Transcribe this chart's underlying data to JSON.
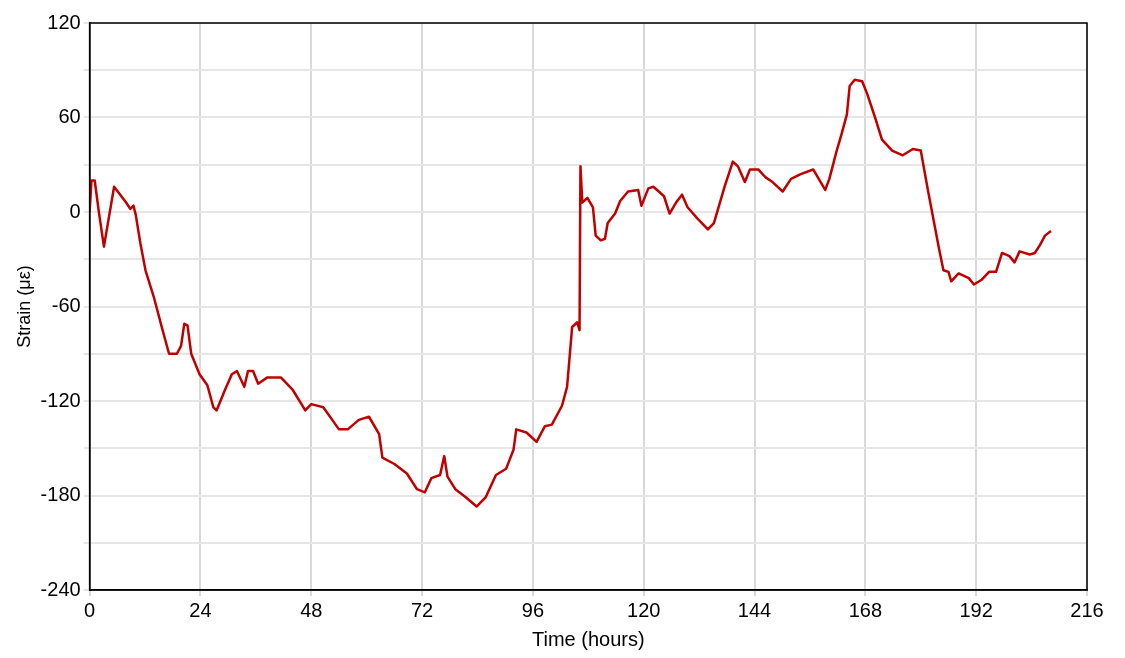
{
  "chart_data": {
    "type": "line",
    "xlabel": "Time (hours)",
    "ylabel": "Strain (με)",
    "xlim": [
      0,
      216
    ],
    "xticks": [
      0,
      24,
      48,
      72,
      96,
      120,
      144,
      168,
      192,
      216
    ],
    "ylim": [
      -240,
      120
    ],
    "yticks": [
      120,
      {
        "value": 90,
        "label": null
      },
      60,
      {
        "value": 30,
        "label": null
      },
      0,
      {
        "value": -30,
        "label": null
      },
      -60,
      {
        "value": -90,
        "label": null
      },
      -120,
      {
        "value": -150,
        "label": null
      },
      -180,
      {
        "value": -210,
        "label": null
      },
      -240
    ],
    "grid": true,
    "legend": false,
    "marker": "none",
    "line_style": "solid",
    "series": [
      {
        "color": "#c00000",
        "x": [
          0,
          0.4,
          1.1,
          2,
          3.1,
          5.3,
          7.9,
          8.8,
          9.5,
          10,
          11,
          12.1,
          13.9,
          15.8,
          17.2,
          18.9,
          19.8,
          20.5,
          21.2,
          22,
          23.8,
          25.5,
          26.8,
          27.5,
          29.3,
          30.8,
          31.9,
          33.5,
          34.3,
          35.4,
          36.5,
          38.5,
          41.4,
          44,
          46.7,
          48,
          50.6,
          54,
          55.9,
          58.3,
          60.5,
          62.7,
          63.4,
          66,
          68.7,
          70.9,
          72.6,
          74,
          75.9,
          76.8,
          77.5,
          79.2,
          81.4,
          83.8,
          85.8,
          88,
          90.2,
          91.8,
          92.4,
          94.6,
          96.8,
          98.6,
          100.1,
          102.3,
          103.4,
          104.5,
          105.6,
          106.1,
          106.3,
          106.7,
          107.8,
          109,
          109.6,
          110.7,
          111.6,
          112.2,
          113.8,
          114.9,
          116.6,
          118.8,
          119.5,
          121,
          122.1,
          124.4,
          125.6,
          127,
          128.3,
          129.5,
          131.6,
          133.9,
          135.2,
          137.5,
          139.3,
          140.4,
          141.9,
          143,
          144.8,
          146.4,
          147.9,
          150.1,
          151.9,
          154,
          156.7,
          159.3,
          160.2,
          161.8,
          162.8,
          164,
          164.6,
          165.7,
          167.3,
          168.4,
          170.1,
          171.6,
          173.8,
          176.1,
          178.3,
          180,
          181.6,
          183.8,
          184.9,
          186,
          186.6,
          188.2,
          190.4,
          191.5,
          193.2,
          194.8,
          196.3,
          197.6,
          199.2,
          200.3,
          201.4,
          203.6,
          204.7,
          205.8,
          206.9,
          208.2
        ],
        "values": [
          0,
          20,
          20,
          0,
          -22,
          16,
          6,
          2,
          4,
          -2,
          -20,
          -37,
          -54,
          -75,
          -90,
          -90,
          -85,
          -71,
          -72,
          -90,
          -103,
          -110,
          -124,
          -126,
          -113,
          -103,
          -101,
          -111,
          -101,
          -101,
          -109,
          -105,
          -105,
          -113,
          -126,
          -122,
          -124,
          -138,
          -138,
          -132,
          -130,
          -141,
          -156,
          -160,
          -166,
          -176,
          -178,
          -169,
          -167,
          -155,
          -168,
          -176,
          -181,
          -187,
          -181,
          -167,
          -163,
          -151,
          -138,
          -140,
          -146,
          -136,
          -135,
          -123,
          -111,
          -73,
          -70,
          -75,
          29,
          6,
          9,
          3,
          -15,
          -18,
          -17,
          -7,
          -1,
          7,
          13,
          14,
          4,
          15,
          16,
          10,
          -1,
          6,
          11,
          3,
          -4,
          -11,
          -7,
          16,
          32,
          29,
          19,
          27,
          27,
          22,
          19,
          13,
          21,
          24,
          27,
          14,
          21,
          39,
          49,
          62,
          80,
          84,
          83,
          75,
          60,
          46,
          39,
          36,
          40,
          39,
          13,
          -21,
          -37,
          -38,
          -44,
          -39,
          -42,
          -46,
          -43,
          -38,
          -38,
          -26,
          -28,
          -32,
          -25,
          -27,
          -26,
          -21,
          -15,
          -12
        ]
      }
    ]
  }
}
